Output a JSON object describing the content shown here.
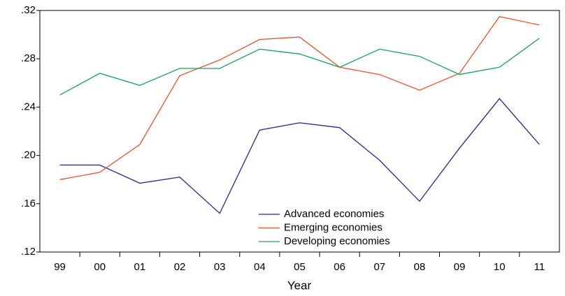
{
  "chart_data": {
    "type": "line",
    "x_label": "Year",
    "categories": [
      "99",
      "00",
      "01",
      "02",
      "03",
      "04",
      "05",
      "06",
      "07",
      "08",
      "09",
      "10",
      "11"
    ],
    "series": [
      {
        "name": "Advanced economies",
        "color": "#1f2a8c",
        "values": [
          0.192,
          0.192,
          0.177,
          0.182,
          0.152,
          0.221,
          0.227,
          0.223,
          0.196,
          0.162,
          0.206,
          0.247,
          0.209
        ]
      },
      {
        "name": "Emerging economies",
        "color": "#e8542a",
        "values": [
          0.18,
          0.186,
          0.209,
          0.266,
          0.279,
          0.296,
          0.298,
          0.273,
          0.267,
          0.254,
          0.268,
          0.315,
          0.308
        ]
      },
      {
        "name": "Developing economies",
        "color": "#1aa060",
        "values": [
          0.25,
          0.268,
          0.258,
          0.272,
          0.272,
          0.288,
          0.284,
          0.273,
          0.288,
          0.282,
          0.267,
          0.273,
          0.297
        ]
      }
    ],
    "ylim": [
      0.12,
      0.32
    ],
    "yticks": [
      {
        "value": 0.12,
        "label": ".12"
      },
      {
        "value": 0.16,
        "label": ".16"
      },
      {
        "value": 0.2,
        "label": ".20"
      },
      {
        "value": 0.24,
        "label": ".24"
      },
      {
        "value": 0.28,
        "label": ".28"
      },
      {
        "value": 0.32,
        "label": ".32"
      }
    ],
    "grid": false,
    "legend": "lower center"
  }
}
